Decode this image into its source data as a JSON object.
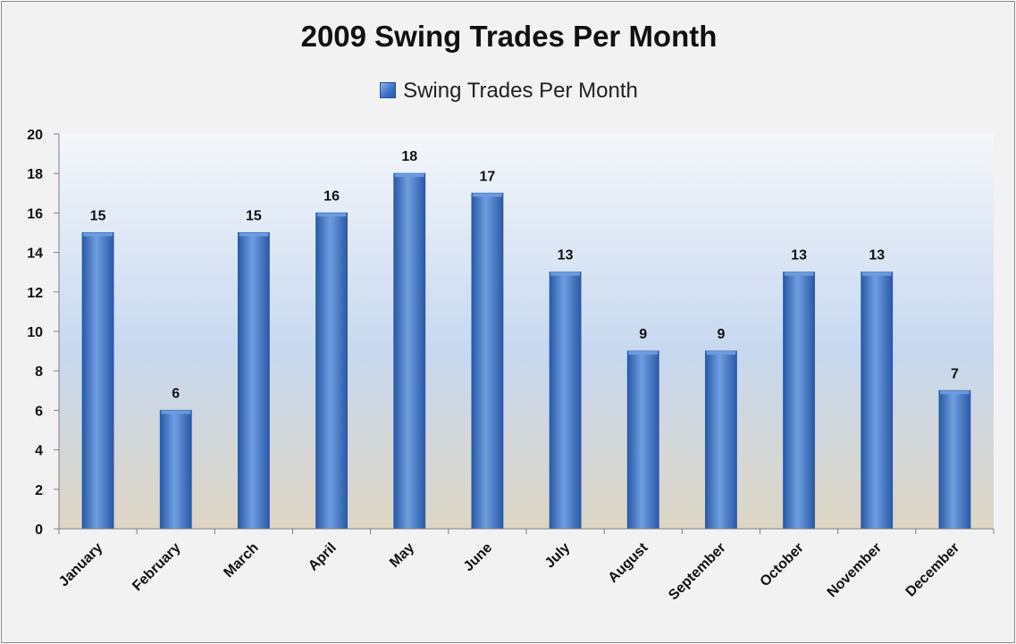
{
  "chart_data": {
    "type": "bar",
    "title": "2009 Swing Trades Per Month",
    "xlabel": "",
    "ylabel": "",
    "categories": [
      "January",
      "February",
      "March",
      "April",
      "May",
      "June",
      "July",
      "August",
      "September",
      "October",
      "November",
      "December"
    ],
    "series": [
      {
        "name": "Swing Trades Per Month",
        "values": [
          15,
          6,
          15,
          16,
          18,
          17,
          13,
          9,
          9,
          13,
          13,
          7
        ]
      }
    ],
    "ylim": [
      0,
      20
    ],
    "yticks": [
      0,
      2,
      4,
      6,
      8,
      10,
      12,
      14,
      16,
      18,
      20
    ],
    "data_labels": true,
    "grid": false,
    "legend_position": "top",
    "colors": {
      "bar": "#3b74c9",
      "bar_dark": "#2a5aa8",
      "bar_light": "#6f9ee0",
      "axis": "#7f7f7f",
      "plot_top": "#f4f7fb",
      "plot_mid": "#c7d8ef",
      "plot_bottom": "#ded6c4",
      "frame_bg": "#f2f2f2"
    }
  }
}
